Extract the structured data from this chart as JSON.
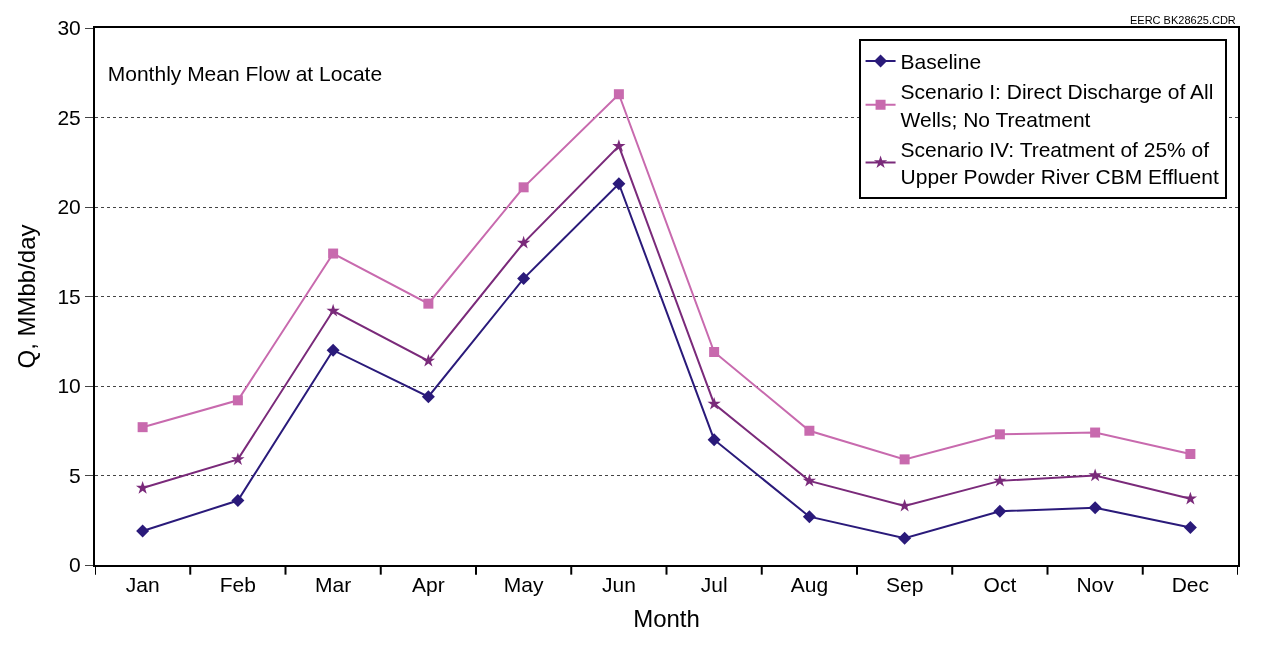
{
  "chart_data": {
    "type": "line",
    "title": "Monthly Mean Flow at Locate",
    "xlabel": "Month",
    "ylabel": "Q, MMbb/day",
    "annotations": [
      "EERC BK28625.CDR"
    ],
    "categories": [
      "Jan",
      "Feb",
      "Mar",
      "Apr",
      "May",
      "Jun",
      "Jul",
      "Aug",
      "Sep",
      "Oct",
      "Nov",
      "Dec"
    ],
    "series": [
      {
        "name": "Baseline",
        "color": "#2a1a7a",
        "marker": "diamond",
        "values": [
          1.9,
          3.6,
          12.0,
          9.4,
          16.0,
          21.3,
          7.0,
          2.7,
          1.5,
          3.0,
          3.2,
          2.1
        ]
      },
      {
        "name": "Scenario I: Direct Discharge of All Wells; No Treatment",
        "color": "#c86aae",
        "marker": "square",
        "values": [
          7.7,
          9.2,
          17.4,
          14.6,
          21.1,
          26.3,
          11.9,
          7.5,
          5.9,
          7.3,
          7.4,
          6.2
        ]
      },
      {
        "name": "Scenario IV: Treatment of 25% of Upper Powder River CBM Effluent",
        "color": "#7a2a7a",
        "marker": "star",
        "values": [
          4.3,
          5.9,
          14.2,
          11.4,
          18.0,
          23.4,
          9.0,
          4.7,
          3.3,
          4.7,
          5.0,
          3.7
        ]
      }
    ],
    "ylim": [
      0,
      30
    ],
    "yticks": [
      0,
      5,
      10,
      15,
      20,
      25,
      30
    ],
    "grid": "y",
    "legend": "top right",
    "line_style": "solid"
  }
}
